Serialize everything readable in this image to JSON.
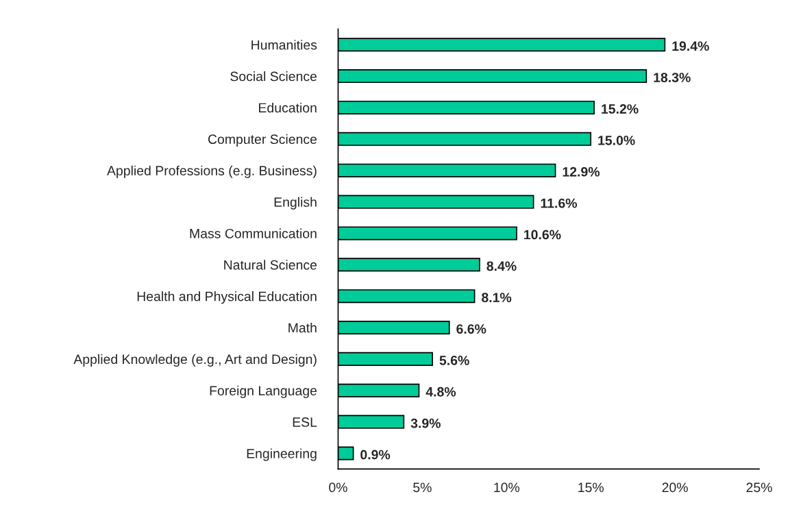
{
  "chart_data": {
    "type": "bar",
    "orientation": "horizontal",
    "categories": [
      "Humanities",
      "Social Science",
      "Education",
      "Computer Science",
      "Applied Professions (e.g. Business)",
      "English",
      "Mass Communication",
      "Natural Science",
      "Health and Physical Education",
      "Math",
      "Applied Knowledge (e.g., Art and Design)",
      "Foreign Language",
      "ESL",
      "Engineering"
    ],
    "values": [
      19.4,
      18.3,
      15.2,
      15.0,
      12.9,
      11.6,
      10.6,
      8.4,
      8.1,
      6.6,
      5.6,
      4.8,
      3.9,
      0.9
    ],
    "value_labels": [
      "19.4%",
      "18.3%",
      "15.2%",
      "15.0%",
      "12.9%",
      "11.6%",
      "10.6%",
      "8.4%",
      "8.1%",
      "6.6%",
      "5.6%",
      "4.8%",
      "3.9%",
      "0.9%"
    ],
    "color": "#00cc99",
    "xlim": [
      0,
      25
    ],
    "xticks": [
      {
        "value": 0,
        "label": "0%"
      },
      {
        "value": 5,
        "label": "5%"
      },
      {
        "value": 10,
        "label": "10%"
      },
      {
        "value": 15,
        "label": "15%"
      },
      {
        "value": 20,
        "label": "20%"
      },
      {
        "value": 25,
        "label": "25%"
      }
    ],
    "grid": false,
    "legend": false
  }
}
